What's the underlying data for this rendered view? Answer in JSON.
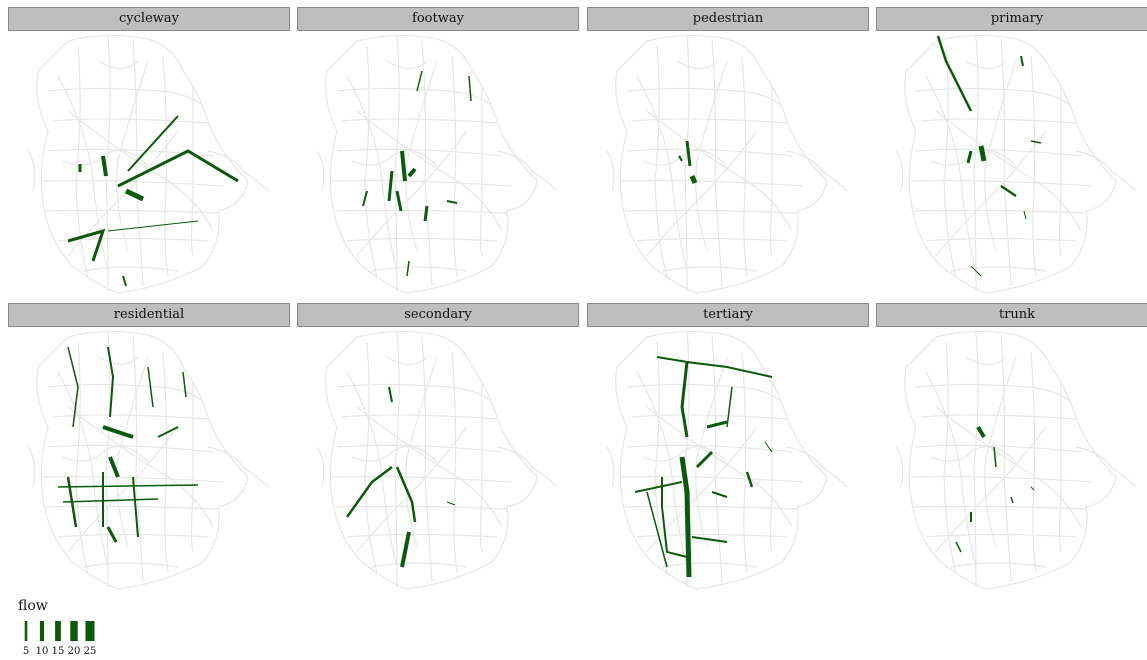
{
  "colors": {
    "network": "#e6e6e6",
    "flow": "#0b5a0b",
    "strip": "#bebebe"
  },
  "panels": [
    {
      "label": "cycleway"
    },
    {
      "label": "footway"
    },
    {
      "label": "pedestrian"
    },
    {
      "label": "primary"
    },
    {
      "label": "residential"
    },
    {
      "label": "secondary"
    },
    {
      "label": "tertiary"
    },
    {
      "label": "trunk"
    }
  ],
  "legend": {
    "title": "flow",
    "items": [
      {
        "label": "5",
        "value": 5
      },
      {
        "label": "10",
        "value": 10
      },
      {
        "label": "15",
        "value": 15
      },
      {
        "label": "20",
        "value": 20
      },
      {
        "label": "25",
        "value": 25
      }
    ]
  }
}
